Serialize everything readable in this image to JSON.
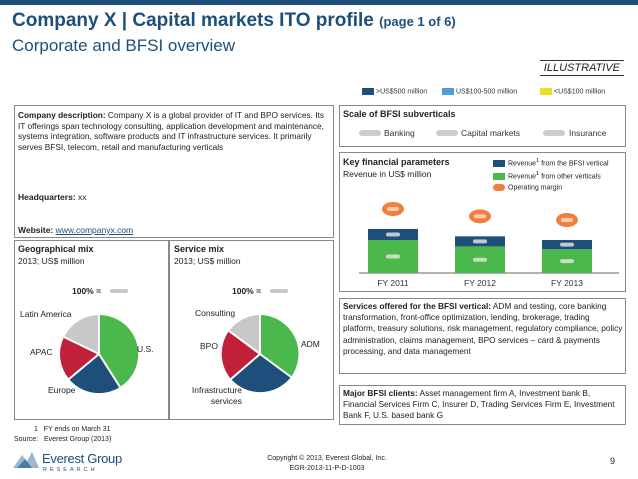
{
  "header": {
    "title": "Company X | Capital markets ITO profile",
    "page_label": "(page 1 of 6)",
    "subtitle": "Corporate and BFSI overview",
    "illustrative": "ILLUSTRATIVE"
  },
  "size_legend": {
    "items": [
      {
        "label": ">US$500 million",
        "color": "#1d4f7a"
      },
      {
        "label": "US$100-500 million",
        "color": "#4a9fd8"
      },
      {
        "label": "<US$100 million",
        "color": "#e8e020"
      }
    ]
  },
  "company": {
    "desc_label": "Company description:",
    "desc_text": "Company X is a global provider of IT and BPO services. Its IT offerings span technology consulting, application development and maintenance, systems integration, software products and IT infrastructure services. It primarily serves BFSI, telecom, retail and manufacturing verticals",
    "hq_label": "Headquarters:",
    "hq_value": "xx",
    "web_label": "Website:",
    "web_value": "www.companyx.com"
  },
  "scale": {
    "title": "Scale of BFSI subverticals",
    "items": [
      "Banking",
      "Capital markets",
      "Insurance"
    ]
  },
  "financials": {
    "title": "Key financial parameters",
    "subtitle": "Revenue in US$ million",
    "legend": [
      {
        "label": "Revenue",
        "sup": "1",
        "rest": " from the BFSI vertical",
        "color": "#1d4f7a"
      },
      {
        "label": "Revenue",
        "sup": "1",
        "rest": " from other verticals",
        "color": "#4ab84a"
      },
      {
        "label": "Operating margin",
        "sup": "",
        "rest": "",
        "color": "#f08040"
      }
    ],
    "years": [
      "FY 2011",
      "FY 2012",
      "FY 2013"
    ]
  },
  "chart_data": {
    "type": "bar",
    "title": "Key financial parameters",
    "ylabel": "Revenue in US$ million",
    "categories": [
      "FY 2011",
      "FY 2012",
      "FY 2013"
    ],
    "series": [
      {
        "name": "Revenue from other verticals",
        "values": [
          36,
          29,
          26
        ]
      },
      {
        "name": "Revenue from the BFSI vertical",
        "values": [
          12,
          11,
          10
        ]
      }
    ],
    "ylim": [
      0,
      60
    ]
  },
  "geo": {
    "title": "Geographical mix",
    "subtitle": "2013; US$ million",
    "total": "100% =",
    "labels": [
      "Latin America",
      "U.S.",
      "APAC",
      "Europe"
    ]
  },
  "service": {
    "title": "Service mix",
    "subtitle": "2013; US$ million",
    "total": "100% =",
    "labels": [
      "Consulting",
      "ADM",
      "BPO",
      "Infrastructure services"
    ]
  },
  "services_offered": {
    "label": "Services offered for the BFSI vertical:",
    "text": "ADM and testing, core banking transformation, front-office optimization, lending, brokerage, trading platform, treasury solutions, risk management, regulatory compliance, policy administration, claims management, BPO services – card & payments processing, and data management"
  },
  "clients": {
    "label": "Major BFSI clients:",
    "text": "Asset management firm A, Investment bank B, Financial Services Firm C, Insurer D, Trading Services Firm E, Investment Bank F, U.S. based bank G"
  },
  "footer": {
    "note_num": "1",
    "note": "FY ends on March 31",
    "source_label": "Source:",
    "source": "Everest Group (2013)",
    "logo_name": "Everest Group",
    "logo_sub": "RESEARCH",
    "copyright": "Copyright © 2013, Everest Global, Inc.",
    "doc_id": "EGR-2013-11-P-D-1003",
    "page": "9"
  }
}
